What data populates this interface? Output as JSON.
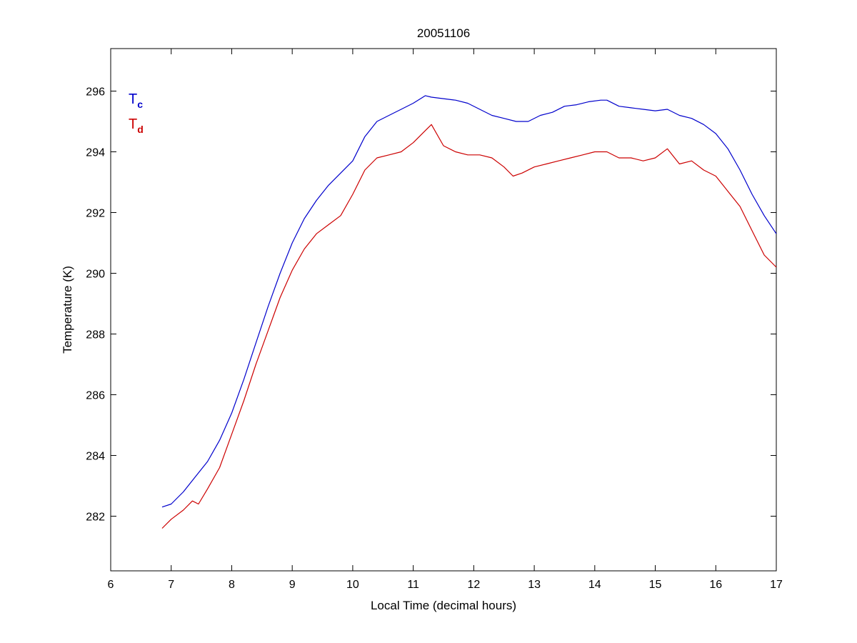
{
  "chart_data": {
    "type": "line",
    "title": "20051106",
    "xlabel": "Local Time (decimal hours)",
    "ylabel": "Temperature (K)",
    "xlim": [
      6,
      17
    ],
    "ylim": [
      280.2,
      297.4
    ],
    "xticks": [
      6,
      7,
      8,
      9,
      10,
      11,
      12,
      13,
      14,
      15,
      16,
      17
    ],
    "yticks": [
      282,
      284,
      286,
      288,
      290,
      292,
      294,
      296
    ],
    "grid": false,
    "legend": {
      "placement": "top-left"
    },
    "series": [
      {
        "name": "T",
        "subscript": "c",
        "color": "#0000cc",
        "x": [
          6.85,
          7.0,
          7.2,
          7.4,
          7.6,
          7.8,
          8.0,
          8.2,
          8.4,
          8.6,
          8.8,
          9.0,
          9.2,
          9.4,
          9.6,
          9.8,
          10.0,
          10.2,
          10.4,
          10.6,
          10.8,
          11.0,
          11.2,
          11.3,
          11.5,
          11.7,
          11.9,
          12.1,
          12.3,
          12.5,
          12.7,
          12.9,
          13.1,
          13.3,
          13.5,
          13.7,
          13.9,
          14.1,
          14.2,
          14.4,
          14.6,
          14.8,
          15.0,
          15.2,
          15.4,
          15.6,
          15.8,
          16.0,
          16.2,
          16.4,
          16.6,
          16.8,
          17.0
        ],
        "y": [
          282.3,
          282.4,
          282.8,
          283.3,
          283.8,
          284.5,
          285.4,
          286.5,
          287.7,
          288.9,
          290.0,
          291.0,
          291.8,
          292.4,
          292.9,
          293.3,
          293.7,
          294.5,
          295.0,
          295.2,
          295.4,
          295.6,
          295.85,
          295.8,
          295.75,
          295.7,
          295.6,
          295.4,
          295.2,
          295.1,
          295.0,
          295.0,
          295.2,
          295.3,
          295.5,
          295.55,
          295.65,
          295.7,
          295.7,
          295.5,
          295.45,
          295.4,
          295.35,
          295.4,
          295.2,
          295.1,
          294.9,
          294.6,
          294.1,
          293.4,
          292.6,
          291.9,
          291.3
        ]
      },
      {
        "name": "T",
        "subscript": "d",
        "color": "#cc0000",
        "x": [
          6.85,
          7.0,
          7.2,
          7.35,
          7.45,
          7.6,
          7.8,
          8.0,
          8.2,
          8.4,
          8.6,
          8.8,
          9.0,
          9.2,
          9.4,
          9.6,
          9.8,
          10.0,
          10.2,
          10.4,
          10.6,
          10.8,
          11.0,
          11.2,
          11.3,
          11.5,
          11.7,
          11.9,
          12.1,
          12.3,
          12.5,
          12.65,
          12.8,
          13.0,
          13.2,
          13.4,
          13.6,
          13.8,
          14.0,
          14.2,
          14.4,
          14.6,
          14.8,
          15.0,
          15.2,
          15.4,
          15.6,
          15.8,
          16.0,
          16.2,
          16.4,
          16.6,
          16.8,
          17.0
        ],
        "y": [
          281.6,
          281.9,
          282.2,
          282.5,
          282.4,
          282.9,
          283.6,
          284.7,
          285.8,
          287.0,
          288.1,
          289.2,
          290.1,
          290.8,
          291.3,
          291.6,
          291.9,
          292.6,
          293.4,
          293.8,
          293.9,
          294.0,
          294.3,
          294.7,
          294.9,
          294.2,
          294.0,
          293.9,
          293.9,
          293.8,
          293.5,
          293.2,
          293.3,
          293.5,
          293.6,
          293.7,
          293.8,
          293.9,
          294.0,
          294.0,
          293.8,
          293.8,
          293.7,
          293.8,
          294.1,
          293.6,
          293.7,
          293.4,
          293.2,
          292.7,
          292.2,
          291.4,
          290.6,
          290.2
        ]
      }
    ]
  }
}
